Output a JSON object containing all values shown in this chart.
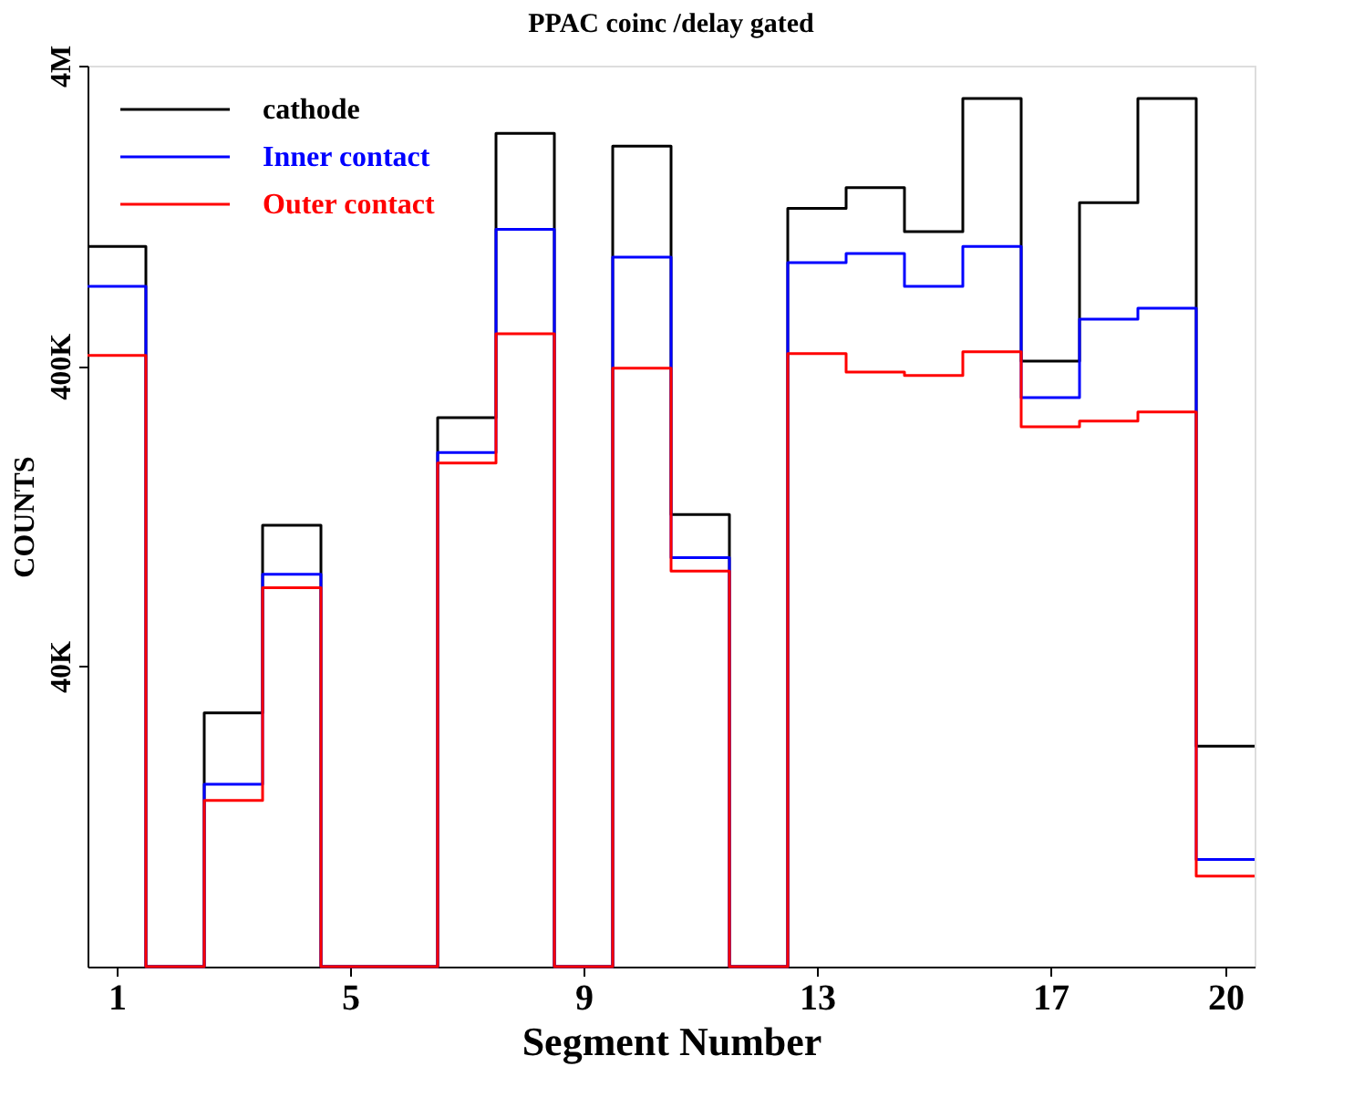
{
  "chart_data": {
    "type": "histogram",
    "title": "PPAC  coinc  /delay  gated",
    "xlabel": "Segment Number",
    "ylabel": "COUNTS",
    "bins": [
      0.5,
      1.5,
      2.5,
      3.5,
      4.5,
      5.5,
      6.5,
      7.5,
      8.5,
      9.5,
      10.5,
      11.5,
      12.5,
      13.5,
      14.5,
      15.5,
      16.5,
      17.5,
      18.5,
      19.5,
      20.5
    ],
    "series": [
      {
        "name": "cathode",
        "color": "#000000",
        "values": [
          1000000,
          null,
          28000,
          118000,
          null,
          null,
          269000,
          2380000,
          null,
          2160000,
          128000,
          null,
          1340000,
          1570000,
          1120000,
          3110000,
          415000,
          1400000,
          3110000,
          21700
        ]
      },
      {
        "name": "Inner contact",
        "color": "#0000ff",
        "values": [
          737000,
          null,
          16200,
          81000,
          null,
          null,
          206000,
          1140000,
          null,
          922000,
          92000,
          null,
          884000,
          948000,
          737000,
          1000000,
          314000,
          573000,
          623000,
          9100
        ]
      },
      {
        "name": "Outer contact",
        "color": "#ff0000",
        "values": [
          434000,
          null,
          14300,
          73000,
          null,
          null,
          190000,
          512000,
          null,
          393000,
          83000,
          null,
          440000,
          382000,
          372000,
          446000,
          251000,
          262000,
          281000,
          8000
        ]
      }
    ],
    "log": "y",
    "xlim": [
      0.5,
      20.5
    ],
    "xticks": [
      1,
      5,
      9,
      13,
      17,
      20
    ],
    "ylim": [
      4000,
      4000000
    ],
    "yticks": [
      {
        "value": 40000,
        "label": "40K"
      },
      {
        "value": 400000,
        "label": "400K"
      },
      {
        "value": 4000000,
        "label": "4M"
      }
    ],
    "grid": false,
    "legend": "top left",
    "line_style": "solid"
  }
}
